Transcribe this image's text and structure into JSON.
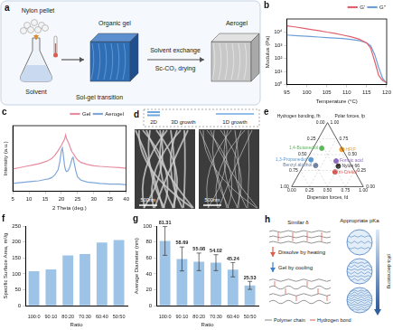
{
  "chart_data": [
    {
      "panel": "b",
      "type": "line",
      "x_label": "Temperature (°C)",
      "y_label": "Modulus (Pa)",
      "x": [
        95,
        97,
        99,
        101,
        103,
        105,
        107,
        109,
        111,
        113,
        115,
        116,
        117,
        118,
        119,
        120
      ],
      "series": [
        {
          "name": "G'",
          "color": "#e0606e",
          "values": [
            30000,
            25000,
            20000,
            16000,
            13000,
            10000,
            8000,
            6000,
            4500,
            3000,
            1500,
            600,
            60,
            5,
            2,
            1.5
          ]
        },
        {
          "name": "G''",
          "color": "#6c9fd8",
          "values": [
            6000,
            5500,
            5000,
            4600,
            4200,
            3800,
            3500,
            3200,
            2800,
            2300,
            1500,
            900,
            200,
            20,
            3,
            1.2
          ]
        }
      ],
      "xlim": [
        95,
        120
      ],
      "xticks": [
        95,
        100,
        105,
        110,
        115,
        120
      ],
      "ylim": [
        1,
        100000
      ],
      "yticks": [
        {
          "value": 1,
          "label": "10⁰"
        },
        {
          "value": 10,
          "label": "10¹"
        },
        {
          "value": 100,
          "label": "10²"
        },
        {
          "value": 1000,
          "label": "10³"
        },
        {
          "value": 10000,
          "label": "10⁴"
        }
      ],
      "log": "y",
      "grid": false,
      "legend": "upper right",
      "marker": "none",
      "line_style": "solid"
    },
    {
      "panel": "c",
      "type": "line",
      "x_label": "2 Theta (deg.)",
      "y_label": "Intensity (a.u.)",
      "x": [
        5,
        7,
        9,
        11,
        13,
        15,
        16,
        17,
        18,
        19,
        19.5,
        20,
        20.3,
        20.6,
        21,
        21.3,
        21.6,
        22,
        22.5,
        23,
        23.3,
        23.6,
        24,
        24.5,
        25,
        26,
        28,
        30,
        32,
        35,
        38,
        40
      ],
      "series": [
        {
          "name": "Gel",
          "color": "#e88ca0",
          "values": [
            34,
            36,
            38,
            40,
            42,
            45,
            47,
            50,
            55,
            62,
            66,
            70,
            73,
            76,
            80,
            86,
            80,
            76,
            70,
            63,
            60,
            58,
            55,
            51,
            48,
            44,
            41,
            39,
            38,
            37,
            36,
            35
          ]
        },
        {
          "name": "Aerogel",
          "color": "#7fa7d9",
          "values": [
            12,
            13,
            14,
            15,
            16,
            18,
            19,
            21,
            25,
            33,
            45,
            62,
            66,
            55,
            38,
            32,
            30,
            31,
            36,
            44,
            50,
            52,
            42,
            30,
            22,
            17,
            14,
            13,
            12,
            11,
            11,
            10
          ]
        }
      ],
      "xlim": [
        5,
        40
      ],
      "xticks": [
        5,
        10,
        15,
        20,
        25,
        30,
        35,
        40
      ],
      "ylim": [
        0,
        100
      ],
      "tick_labels": "x",
      "grid": false,
      "legend": "upper right",
      "marker": "none",
      "line_style": "solid"
    },
    {
      "panel": "e",
      "type": "ternary",
      "axis_labels": {
        "f_h": "Hydrogen bonding, fh",
        "f_p": "Polar forces, fp",
        "f_d": "Dispersion forces, fd"
      },
      "ticks": [
        {
          "value": 0,
          "label": "0.00"
        },
        {
          "value": 0.25,
          "label": "0.25"
        },
        {
          "value": 0.5,
          "label": "0.50"
        },
        {
          "value": 0.75,
          "label": "0.75"
        },
        {
          "value": 1,
          "label": "1.00"
        }
      ],
      "grid": true,
      "marker": "circle",
      "points": [
        {
          "name": "1,4-Butanediol",
          "color": "#5cb85c",
          "f_d": 0.12,
          "f_p": 0.6,
          "f_h": 0.28
        },
        {
          "name": "HFIP",
          "color": "#f0a030",
          "f_d": 0.41,
          "f_p": 0.58,
          "f_h": 0.01
        },
        {
          "name": "1,3-Propanediol",
          "color": "#5b9bd5",
          "f_d": 0.06,
          "f_p": 0.42,
          "f_h": 0.52
        },
        {
          "name": "Formic acid",
          "color": "#8e6bbf",
          "f_d": 0.42,
          "f_p": 0.4,
          "f_h": 0.18
        },
        {
          "name": "Benzyl alcohol",
          "color": "#6c7fa0",
          "f_d": 0.17,
          "f_p": 0.33,
          "f_h": 0.5
        },
        {
          "name": "Nylon 66",
          "color": "#333333",
          "f_d": 0.49,
          "f_p": 0.32,
          "f_h": 0.19
        },
        {
          "name": "m-Cresol",
          "color": "#d9534f",
          "f_d": 0.49,
          "f_p": 0.23,
          "f_h": 0.28
        }
      ]
    },
    {
      "panel": "f",
      "type": "bar",
      "x_label": "Ratio",
      "y_label": "Specific Surface Area, m²/g",
      "categories": [
        "100:0",
        "90:10",
        "80:20",
        "70:30",
        "60:40",
        "50:50"
      ],
      "values": [
        108,
        114,
        158,
        162,
        198,
        206
      ],
      "color": "#9dc3e6",
      "ylim": [
        0,
        250
      ],
      "yticks": [
        0,
        50,
        100,
        150,
        200,
        250
      ],
      "grid": false
    },
    {
      "panel": "g",
      "type": "bar",
      "x_label": "Ratio",
      "y_label": "Average Diameter (nm)",
      "categories": [
        "100:0",
        "90:10",
        "80:20",
        "70:30",
        "60:40",
        "50:50"
      ],
      "values": [
        81.31,
        58.69,
        55.08,
        54.02,
        45.24,
        25.53
      ],
      "errors": [
        18,
        15,
        11,
        10,
        9,
        5
      ],
      "color": "#9dc3e6",
      "data_labels": true,
      "ylim": [
        0,
        100
      ],
      "yticks": [
        0,
        20,
        40,
        60,
        80,
        100
      ],
      "grid": false
    }
  ],
  "diagrams": {
    "a": {
      "label": "a",
      "texts": {
        "pellet": "Nylon pellet",
        "solvent": "Solvent",
        "gel": "Organic gel",
        "transition": "Sol-gel transition",
        "exchange": "Solvent exchange",
        "drying": "Sc-CO₂ drying",
        "aerogel": "Aerogel"
      }
    },
    "d": {
      "label": "d",
      "growth": [
        "2D",
        "3D growth",
        "1D growth"
      ],
      "scale_bars": [
        "500nm",
        "500nm"
      ]
    },
    "h": {
      "label": "h",
      "title_left": "Similar δ",
      "steps": [
        "Dissolve by heating",
        "Gel by cooling"
      ],
      "keys": [
        "Polymer chain",
        "Hydrogen bond"
      ],
      "title_right": "Appropriate pKa",
      "trend": "pKa decreasing"
    }
  }
}
